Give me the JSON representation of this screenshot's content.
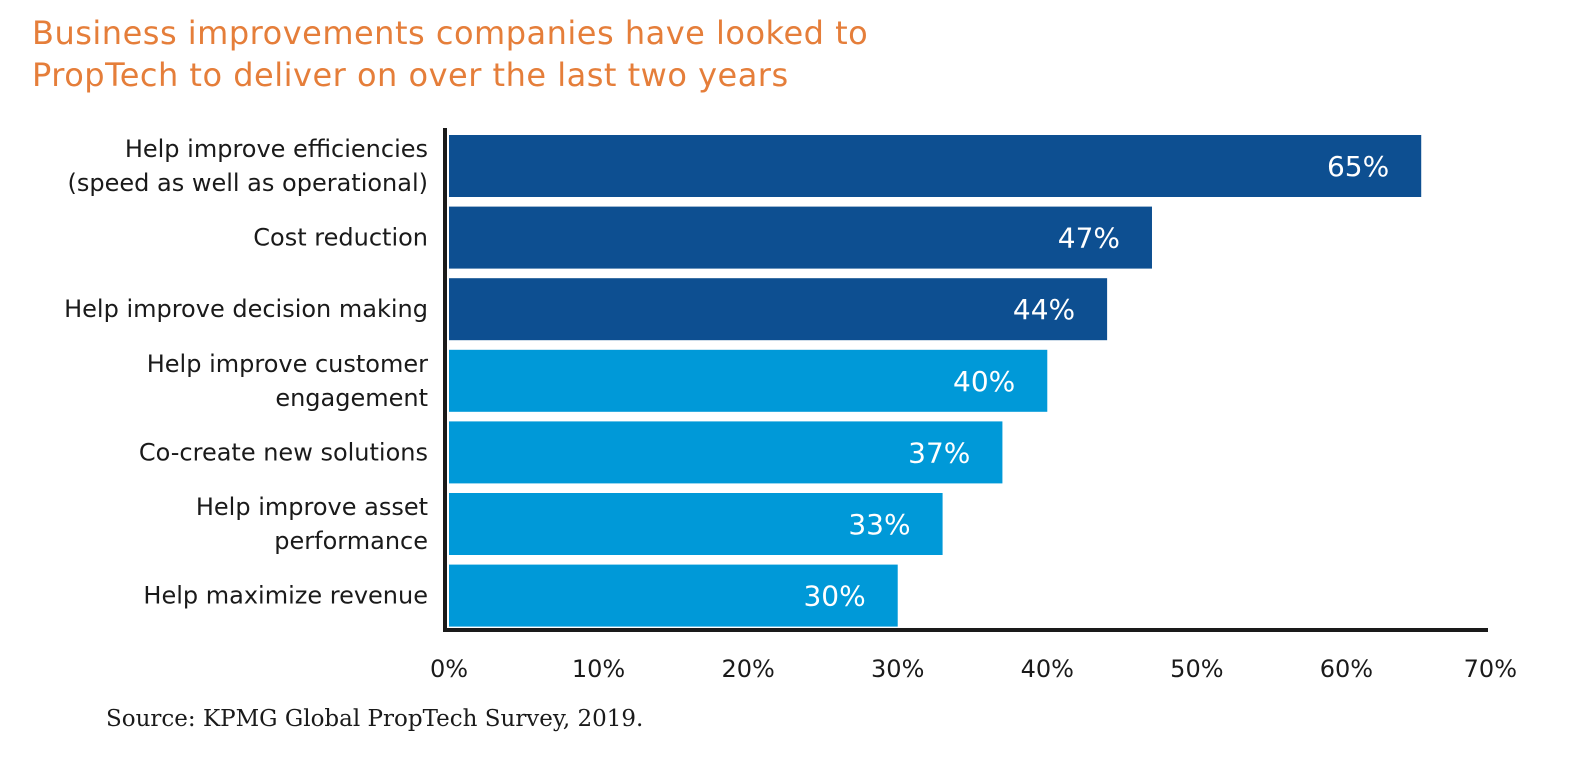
{
  "title_lines": [
    "Business improvements companies have looked to",
    "PropTech to deliver on over the last two years"
  ],
  "source": "Source: KPMG Global PropTech Survey, 2019.",
  "colors": {
    "title": "#e57e3a",
    "dark_bar": "#0d4f91",
    "light_bar": "#0099d8",
    "axis": "#1a1a1a"
  },
  "chart_data": {
    "type": "bar",
    "orientation": "horizontal",
    "categories": [
      [
        "Help improve efficiencies",
        "(speed as well as operational)"
      ],
      [
        "Cost reduction"
      ],
      [
        "Help improve decision making"
      ],
      [
        "Help improve customer",
        "engagement"
      ],
      [
        "Co-create new solutions"
      ],
      [
        "Help improve asset",
        "performance"
      ],
      [
        "Help maximize revenue"
      ]
    ],
    "values": [
      65,
      47,
      44,
      40,
      37,
      33,
      30
    ],
    "value_labels": [
      "65%",
      "47%",
      "44%",
      "40%",
      "37%",
      "33%",
      "30%"
    ],
    "bar_colors": [
      "#0d4f91",
      "#0d4f91",
      "#0d4f91",
      "#0099d8",
      "#0099d8",
      "#0099d8",
      "#0099d8"
    ],
    "xlim": [
      0,
      70
    ],
    "x_ticks": [
      "0%",
      "10%",
      "20%",
      "30%",
      "40%",
      "50%",
      "60%",
      "70%"
    ],
    "grid": false,
    "legend": "none"
  }
}
